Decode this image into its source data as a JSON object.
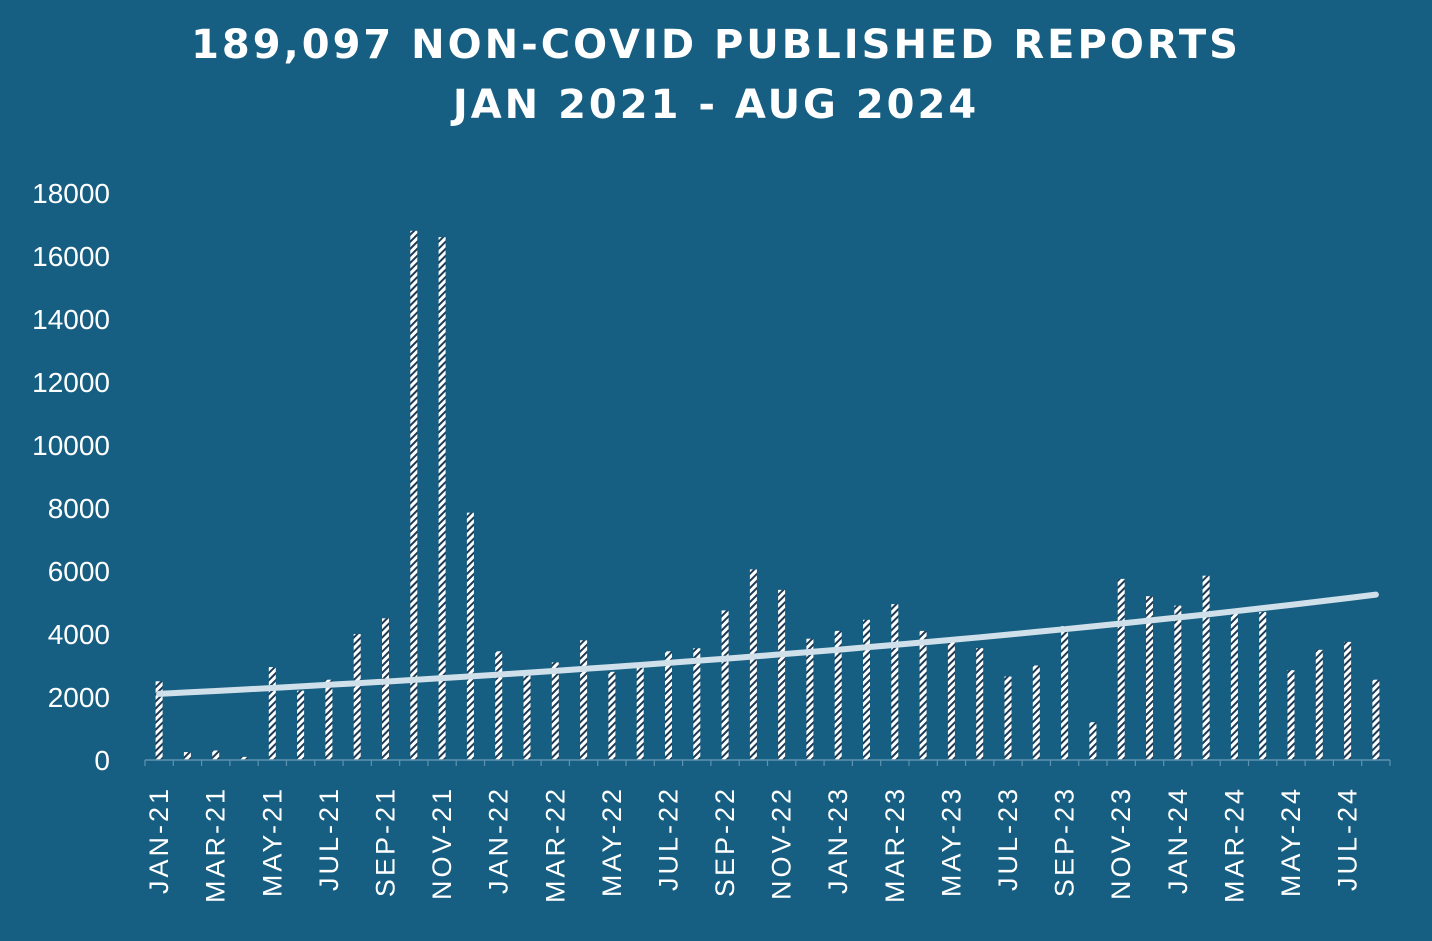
{
  "title_line1": "189,097 NON-COVID PUBLISHED REPORTS",
  "title_line2": "JAN 2021 - AUG 2024",
  "chart_data": {
    "type": "bar",
    "title": "189,097 NON-COVID PUBLISHED REPORTS JAN 2021 - AUG 2024",
    "xlabel": "",
    "ylabel": "",
    "ylim": [
      0,
      18000
    ],
    "yticks": [
      0,
      2000,
      4000,
      6000,
      8000,
      10000,
      12000,
      14000,
      16000,
      18000
    ],
    "categories": [
      "Jan-21",
      "Feb-21",
      "Mar-21",
      "Apr-21",
      "May-21",
      "Jun-21",
      "Jul-21",
      "Aug-21",
      "Sep-21",
      "Oct-21",
      "Nov-21",
      "Dec-21",
      "Jan-22",
      "Feb-22",
      "Mar-22",
      "Apr-22",
      "May-22",
      "Jun-22",
      "Jul-22",
      "Aug-22",
      "Sep-22",
      "Oct-22",
      "Nov-22",
      "Dec-22",
      "Jan-23",
      "Feb-23",
      "Mar-23",
      "Apr-23",
      "May-23",
      "Jun-23",
      "Jul-23",
      "Aug-23",
      "Sep-23",
      "Oct-23",
      "Nov-23",
      "Dec-23",
      "Jan-24",
      "Feb-24",
      "Mar-24",
      "Apr-24",
      "May-24",
      "Jun-24",
      "Jul-24",
      "Aug-24"
    ],
    "tick_labels": [
      "JAN-21",
      "MAR-21",
      "MAY-21",
      "JUL-21",
      "SEP-21",
      "NOV-21",
      "JAN-22",
      "MAR-22",
      "MAY-22",
      "JUL-22",
      "SEP-22",
      "NOV-22",
      "JAN-23",
      "MAR-23",
      "MAY-23",
      "JUL-23",
      "SEP-23",
      "NOV-23",
      "JAN-24",
      "MAR-24",
      "MAY-24",
      "JUL-24"
    ],
    "values": [
      2500,
      250,
      300,
      100,
      2950,
      2200,
      2550,
      4000,
      4500,
      16800,
      16600,
      7850,
      3450,
      2850,
      3100,
      3800,
      2800,
      2950,
      3450,
      3550,
      4750,
      6050,
      5400,
      3850,
      4100,
      4450,
      4950,
      4100,
      3850,
      3550,
      2650,
      3000,
      4250,
      1200,
      5750,
      5200,
      4900,
      5850,
      4700,
      4700,
      2850,
      3500,
      3750,
      2550
    ],
    "trendline": {
      "type": "exponential",
      "start": 2100,
      "end": 5250
    },
    "colors": {
      "background": "#175f82",
      "bar_fill": "#ffffff",
      "bar_hatch": "#1c3a55",
      "trendline": "#cfe0ea",
      "text": "#ffffff"
    },
    "grid": false,
    "legend": "none"
  }
}
